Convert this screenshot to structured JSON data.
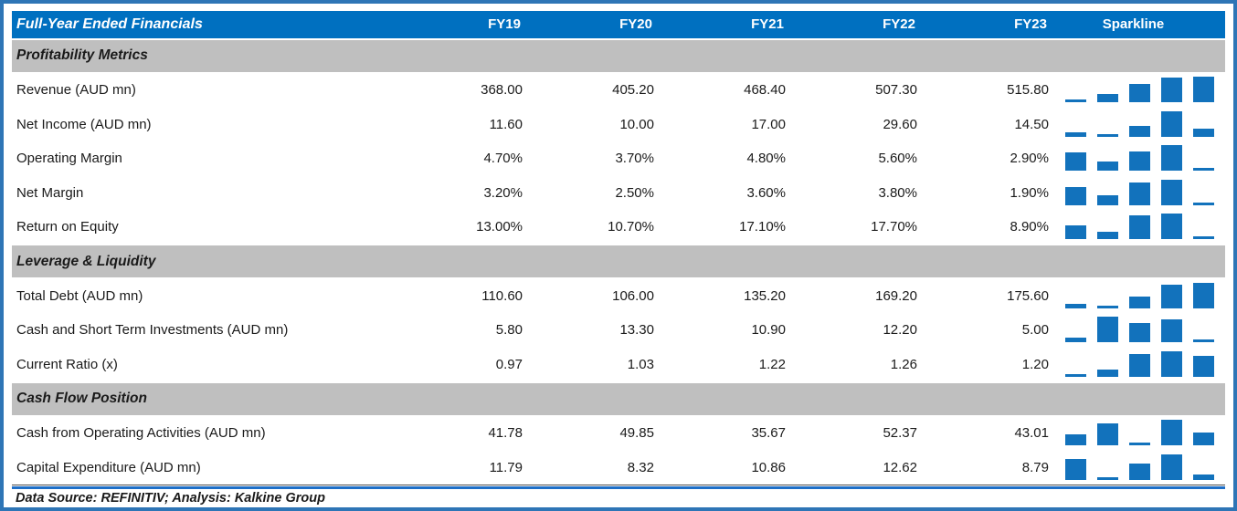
{
  "chart_data": {
    "type": "table",
    "title": "Full-Year Ended Financials",
    "columns": [
      "FY19",
      "FY20",
      "FY21",
      "FY22",
      "FY23",
      "Sparkline"
    ],
    "sparkline_style": "column-bars, per-row min-max scaled",
    "sections": [
      {
        "title": "Profitability Metrics",
        "rows": [
          {
            "label": "Revenue (AUD mn)",
            "values": [
              "368.00",
              "405.20",
              "468.40",
              "507.30",
              "515.80"
            ]
          },
          {
            "label": "Net Income (AUD mn)",
            "values": [
              "11.60",
              "10.00",
              "17.00",
              "29.60",
              "14.50"
            ]
          },
          {
            "label": "Operating Margin",
            "values": [
              "4.70%",
              "3.70%",
              "4.80%",
              "5.60%",
              "2.90%"
            ]
          },
          {
            "label": "Net Margin",
            "values": [
              "3.20%",
              "2.50%",
              "3.60%",
              "3.80%",
              "1.90%"
            ]
          },
          {
            "label": "Return on Equity",
            "values": [
              "13.00%",
              "10.70%",
              "17.10%",
              "17.70%",
              "8.90%"
            ]
          }
        ]
      },
      {
        "title": "Leverage & Liquidity",
        "rows": [
          {
            "label": "Total Debt (AUD mn)",
            "values": [
              "110.60",
              "106.00",
              "135.20",
              "169.20",
              "175.60"
            ]
          },
          {
            "label": "Cash and Short Term Investments (AUD mn)",
            "values": [
              "5.80",
              "13.30",
              "10.90",
              "12.20",
              "5.00"
            ]
          },
          {
            "label": "Current Ratio (x)",
            "values": [
              "0.97",
              "1.03",
              "1.22",
              "1.26",
              "1.20"
            ]
          }
        ]
      },
      {
        "title": "Cash Flow Position",
        "rows": [
          {
            "label": "Cash from Operating Activities (AUD mn)",
            "values": [
              "41.78",
              "49.85",
              "35.67",
              "52.37",
              "43.01"
            ]
          },
          {
            "label": "Capital Expenditure (AUD mn)",
            "values": [
              "11.79",
              "8.32",
              "10.86",
              "12.62",
              "8.79"
            ]
          }
        ]
      }
    ],
    "footer": "Data Source: REFINITIV; Analysis: Kalkine Group",
    "colors": {
      "header_blue": "#0070c0",
      "band_gray": "#bfbfbf",
      "sparkline_blue": "#1272bc",
      "frame_blue": "#2e75b6",
      "rule_blue": "#1e6fc8",
      "text": "#1a1a1a"
    }
  }
}
